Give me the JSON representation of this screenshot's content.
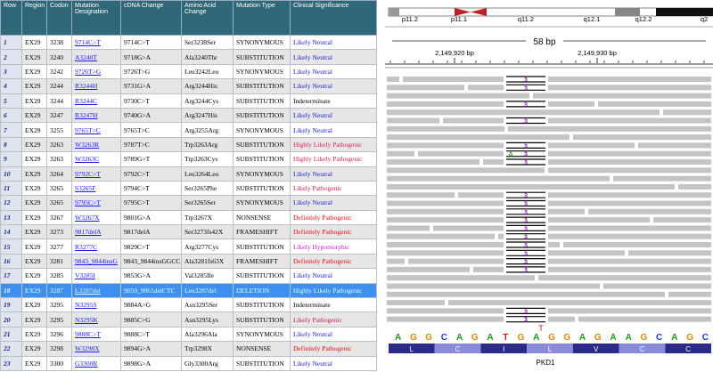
{
  "table": {
    "headers": [
      "Row",
      "Region",
      "Codon",
      "Mutation Designation",
      "cDNA Change",
      "Amino Acid Change",
      "Mutation Type",
      "Clinical Significance"
    ],
    "rows": [
      [
        "1",
        "EX29",
        "3238",
        "9714C>T",
        "9714C>T",
        "Ser3238Ser",
        "SYNONYMOUS",
        "Likely Neutral"
      ],
      [
        "2",
        "EX29",
        "3240",
        "A3240T",
        "9718G>A",
        "Ala3240Thr",
        "SUBSTITUTION",
        "Likely Neutral"
      ],
      [
        "3",
        "EX29",
        "3242",
        "9726T>G",
        "9726T>G",
        "Leu3242Leu",
        "SYNONYMOUS",
        "Likely Neutral"
      ],
      [
        "4",
        "EX29",
        "3244",
        "R3244H",
        "9731G>A",
        "Arg3244His",
        "SUBSTITUTION",
        "Likely Neutral"
      ],
      [
        "5",
        "EX29",
        "3244",
        "R3244C",
        "9730C>T",
        "Arg3244Cys",
        "SUBSTITUTION",
        "Indeterminate"
      ],
      [
        "6",
        "EX29",
        "3247",
        "R3247H",
        "9740G>A",
        "Arg3247His",
        "SUBSTITUTION",
        "Likely Neutral"
      ],
      [
        "7",
        "EX29",
        "3255",
        "9765T>C",
        "9765T>C",
        "Arg3255Arg",
        "SYNONYMOUS",
        "Likely Neutral"
      ],
      [
        "8",
        "EX29",
        "3263",
        "W3263R",
        "9787T>C",
        "Trp3263Arg",
        "SUBSTITUTION",
        "Highly Likely Pathogenic"
      ],
      [
        "9",
        "EX29",
        "3263",
        "W3263C",
        "9789G>T",
        "Trp3263Cys",
        "SUBSTITUTION",
        "Highly Likely Pathogenic"
      ],
      [
        "10",
        "EX29",
        "3264",
        "9792C>T",
        "9792C>T",
        "Leu3264Leu",
        "SYNONYMOUS",
        "Likely Neutral"
      ],
      [
        "11",
        "EX29",
        "3265",
        "S3265F",
        "9794C>T",
        "Ser3265Phe",
        "SUBSTITUTION",
        "Likely Pathogenic"
      ],
      [
        "12",
        "EX29",
        "3265",
        "9795C>T",
        "9795C>T",
        "Ser3265Ser",
        "SYNONYMOUS",
        "Likely Neutral"
      ],
      [
        "13",
        "EX29",
        "3267",
        "W3267X",
        "9801G>A",
        "Trp3267X",
        "NONSENSE",
        "Definitely Pathogenic"
      ],
      [
        "14",
        "EX29",
        "3273",
        "9817delA",
        "9817delA",
        "Ser3273fs42X",
        "FRAMESHIFT",
        "Definitely Pathogenic"
      ],
      [
        "15",
        "EX29",
        "3277",
        "R3277C",
        "9829C>T",
        "Arg3277Cys",
        "SUBSTITUTION",
        "Likely Hypomorphic"
      ],
      [
        "16",
        "EX29",
        "3281",
        "9843_9844insG",
        "9843_9844insGGCC",
        "Ala3281fs63X",
        "FRAMESHIFT",
        "Definitely Pathogenic"
      ],
      [
        "17",
        "EX29",
        "3285",
        "V3285I",
        "9853G>A",
        "Val3285Ile",
        "SUBSTITUTION",
        "Likely Neutral"
      ],
      [
        "18",
        "EX29",
        "3287",
        "L3287del",
        "9859_9861delCTC",
        "Leu3287del",
        "DELETION",
        "Highly Likely Pathogenic"
      ],
      [
        "19",
        "EX29",
        "3295",
        "N3295S",
        "9884A>G",
        "Asn3295Ser",
        "SUBSTITUTION",
        "Indeterminate"
      ],
      [
        "20",
        "EX29",
        "3295",
        "N3295K",
        "9885C>G",
        "Asn3295Lys",
        "SUBSTITUTION",
        "Likely Pathogenic"
      ],
      [
        "21",
        "EX29",
        "3296",
        "9888C>T",
        "9888C>T",
        "Ala3296Ala",
        "SYNONYMOUS",
        "Likely Neutral"
      ],
      [
        "22",
        "EX29",
        "3298",
        "W3298X",
        "9894G>A",
        "Trp3298X",
        "NONSENSE",
        "Definitely Pathogenic"
      ],
      [
        "23",
        "EX29",
        "3300",
        "G3300R",
        "9898G>A",
        "Gly3300Arg",
        "SUBSTITUTION",
        "Likely Neutral"
      ]
    ],
    "significance_colors": [
      "#2020d0",
      "#2020d0",
      "#2020d0",
      "#2020d0",
      "#000000",
      "#2020d0",
      "#2020d0",
      "#e0205a",
      "#e0205a",
      "#2020d0",
      "#c02050",
      "#2020d0",
      "#e01010",
      "#e01010",
      "#c020c0",
      "#e01010",
      "#2020d0",
      "#e0205a",
      "#000000",
      "#c02050",
      "#2020d0",
      "#e01010",
      "#2020d0"
    ],
    "highlighted_row": 17
  },
  "igv": {
    "bands": [
      "p11.2",
      "p11.1",
      "q11.2",
      "q12.1",
      "q12.2",
      "q2"
    ],
    "span": "58 bp",
    "positions": [
      "2,149,920 bp",
      "2,149,930 bp"
    ],
    "insertion_label": "3",
    "mismatches": [
      "A",
      "T"
    ],
    "sequence": [
      "A",
      "G",
      "G",
      "C",
      "A",
      "G",
      "A",
      "T",
      "G",
      "A",
      "G",
      "G",
      "A",
      "G",
      "A",
      "A",
      "G",
      "C",
      "A",
      "G",
      "C"
    ],
    "amino_acids": [
      "L",
      "C",
      "I",
      "L",
      "V",
      "C",
      "C"
    ],
    "gene": "PKD1",
    "base_colors": {
      "A": "#1a9a1a",
      "C": "#1a3fd0",
      "G": "#d88a00",
      "T": "#d01010"
    }
  }
}
